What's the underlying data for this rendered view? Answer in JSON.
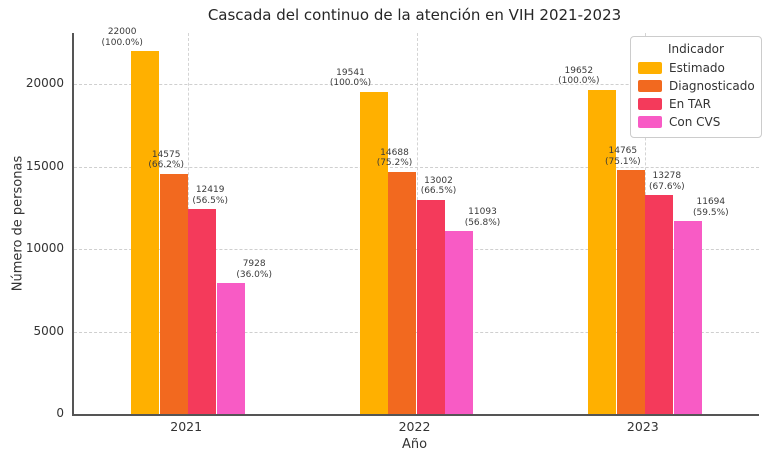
{
  "chart_data": {
    "type": "bar",
    "title": "Cascada del continuo de la atención en VIH 2021-2023",
    "xlabel": "Año",
    "ylabel": "Número de personas",
    "categories": [
      "2021",
      "2022",
      "2023"
    ],
    "series": [
      {
        "name": "Estimado",
        "color": "#FFB000",
        "values": [
          22000,
          19541,
          19652
        ],
        "percents": [
          "100.0%",
          "100.0%",
          "100.0%"
        ]
      },
      {
        "name": "Diagnosticado",
        "color": "#F2691F",
        "values": [
          14575,
          14688,
          14765
        ],
        "percents": [
          "66.2%",
          "75.2%",
          "75.1%"
        ]
      },
      {
        "name": "En TAR",
        "color": "#F43A5B",
        "values": [
          12419,
          13002,
          13278
        ],
        "percents": [
          "56.5%",
          "66.5%",
          "67.6%"
        ]
      },
      {
        "name": "Con CVS",
        "color": "#F85BC5",
        "values": [
          7928,
          11093,
          11694
        ],
        "percents": [
          "36.0%",
          "56.8%",
          "59.5%"
        ]
      }
    ],
    "yticks": [
      0,
      5000,
      10000,
      15000,
      20000
    ],
    "ylim": [
      0,
      23100
    ],
    "grid": {
      "style": "dashed",
      "color": "#cfcfcf",
      "horizontal": true,
      "vertical": true
    },
    "legend": {
      "title": "Indicador",
      "position": "top-right"
    }
  }
}
